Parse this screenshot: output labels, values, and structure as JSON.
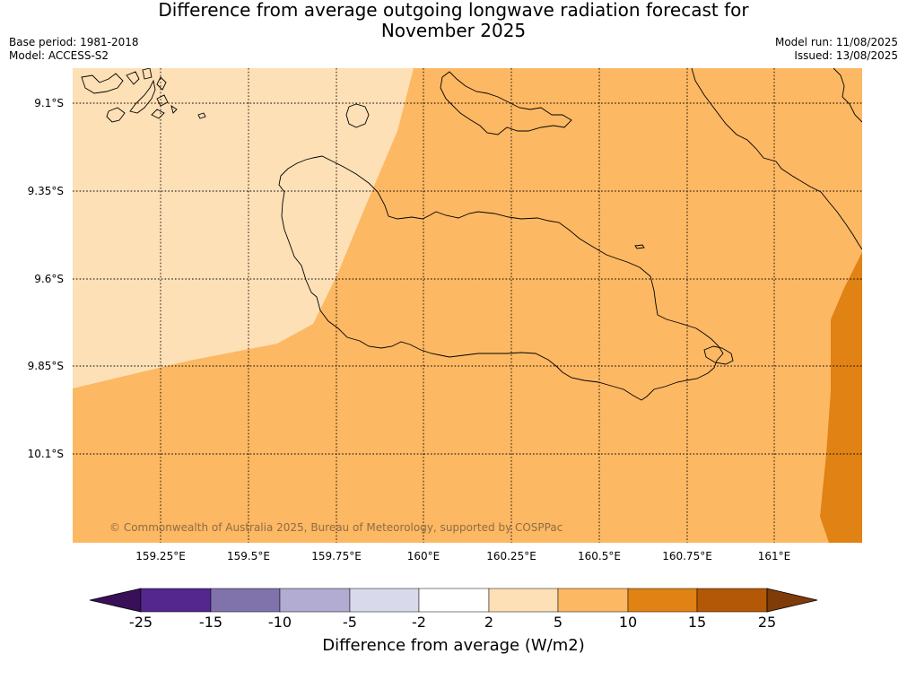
{
  "title_line1": "Difference from average outgoing longwave radiation forecast for",
  "title_line2": "November 2025",
  "base_period": "Base period: 1981-2018",
  "model": "Model: ACCESS-S2",
  "model_run": "Model run: 11/08/2025",
  "issued": "Issued: 13/08/2025",
  "lat_labels": [
    "9.1°S",
    "9.35°S",
    "9.6°S",
    "9.85°S",
    "10.1°S"
  ],
  "lon_labels": [
    "159.25°E",
    "159.5°E",
    "159.75°E",
    "160°E",
    "160.25°E",
    "160.5°E",
    "160.75°E",
    "161°E"
  ],
  "copyright": "© Commonwealth of Australia 2025, Bureau of Meteorology, supported by COSPPac",
  "colorbar": {
    "label": "Difference from average (W/m2)",
    "ticks": [
      "-25",
      "-15",
      "-10",
      "-5",
      "-2",
      "2",
      "5",
      "10",
      "15",
      "25"
    ],
    "colors": [
      "#3a0f5a",
      "#54278f",
      "#8073ac",
      "#b2abd2",
      "#d8daeb",
      "#ffffff",
      "#fee0b6",
      "#fdb863",
      "#e08214",
      "#b35806",
      "#7f3b08"
    ]
  },
  "map_legend_classes": {
    "light": "#fee0b6",
    "medium": "#fdb863",
    "dark": "#e08214"
  }
}
